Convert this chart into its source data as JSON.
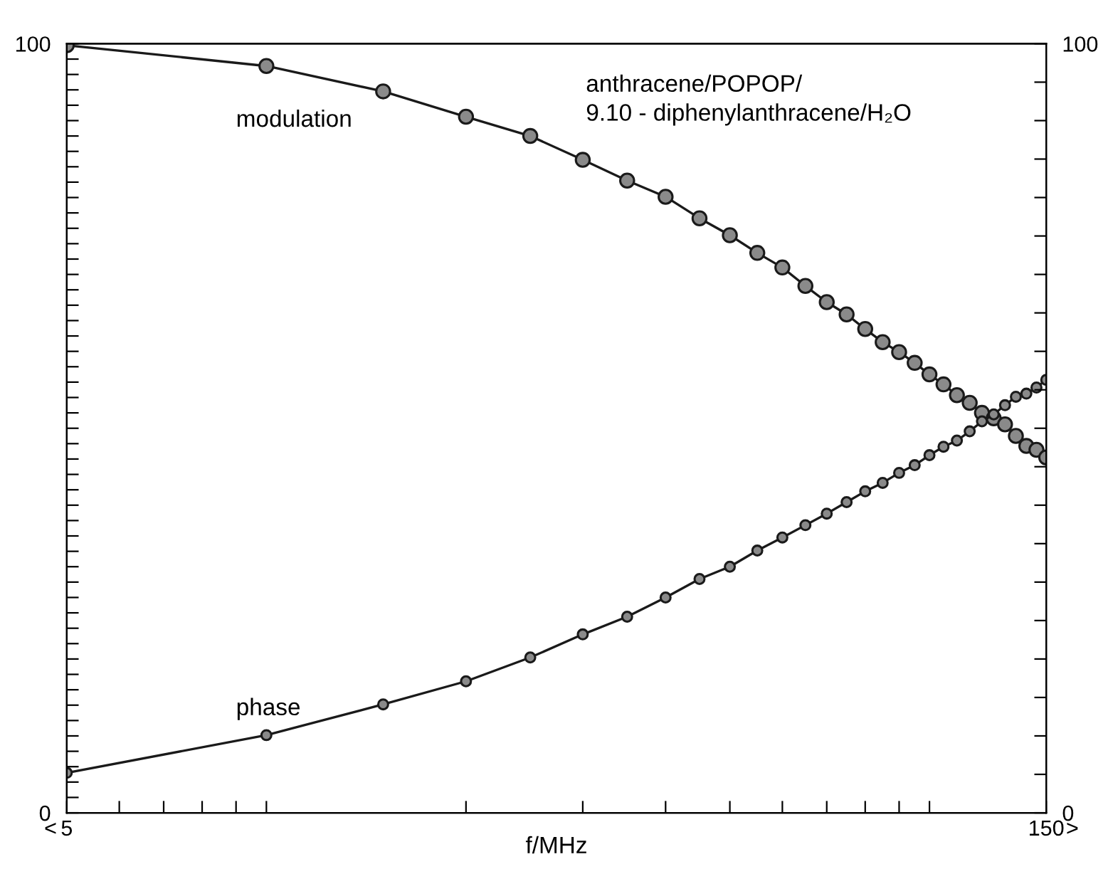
{
  "chart_data": {
    "type": "line",
    "xlabel": "f/MHz",
    "x": [
      5,
      10,
      15,
      20,
      25,
      30,
      35,
      40,
      45,
      50,
      55,
      60,
      65,
      70,
      75,
      80,
      85,
      90,
      95,
      100,
      105,
      110,
      115,
      120,
      125,
      130,
      135,
      140,
      145,
      150
    ],
    "series": [
      {
        "name": "modulation",
        "color": "#1a1a1a",
        "values": [
          99.8,
          97.1,
          93.8,
          90.5,
          88.0,
          84.9,
          82.2,
          80.1,
          77.3,
          75.1,
          72.8,
          70.9,
          68.5,
          66.4,
          64.8,
          62.9,
          61.2,
          59.9,
          58.5,
          57.0,
          55.7,
          54.3,
          53.3,
          52.0,
          51.3,
          50.5,
          49.0,
          47.7,
          47.2,
          46.2
        ]
      },
      {
        "name": "phase",
        "color": "#1a1a1a",
        "values": [
          5.2,
          10.1,
          14.1,
          17.1,
          20.2,
          23.2,
          25.5,
          28.0,
          30.4,
          32.0,
          34.1,
          35.8,
          37.4,
          38.9,
          40.4,
          41.8,
          42.9,
          44.2,
          45.2,
          46.5,
          47.6,
          48.4,
          49.6,
          50.9,
          51.8,
          53.0,
          54.1,
          54.5,
          55.3,
          56.3
        ]
      }
    ],
    "annotations": [
      "anthracene/POPOP/\n9.10 - diphenylanthracene/H₂O",
      "<",
      ">"
    ],
    "log": "x",
    "xlim": [
      5,
      150
    ],
    "xticks": [
      5,
      {
        "value": 6,
        "label": null
      },
      {
        "value": 7,
        "label": null
      },
      {
        "value": 8,
        "label": null
      },
      {
        "value": 9,
        "label": null
      },
      {
        "value": 10,
        "label": null
      },
      {
        "value": 20,
        "label": null
      },
      {
        "value": 30,
        "label": null
      },
      {
        "value": 40,
        "label": null
      },
      {
        "value": 50,
        "label": null
      },
      {
        "value": 60,
        "label": null
      },
      {
        "value": 70,
        "label": null
      },
      {
        "value": 80,
        "label": null
      },
      {
        "value": 90,
        "label": null
      },
      {
        "value": 100,
        "label": null
      },
      150
    ],
    "ylim": [
      0,
      100
    ],
    "yticks": [
      0,
      {
        "value": 2,
        "label": null
      },
      {
        "value": 4,
        "label": null
      },
      {
        "value": 6,
        "label": null
      },
      {
        "value": 8,
        "label": null
      },
      {
        "value": 10,
        "label": null
      },
      {
        "value": 12,
        "label": null
      },
      {
        "value": 14,
        "label": null
      },
      {
        "value": 16,
        "label": null
      },
      {
        "value": 18,
        "label": null
      },
      {
        "value": 20,
        "label": null
      },
      {
        "value": 22,
        "label": null
      },
      {
        "value": 24,
        "label": null
      },
      {
        "value": 26,
        "label": null
      },
      {
        "value": 28,
        "label": null
      },
      {
        "value": 30,
        "label": null
      },
      {
        "value": 32,
        "label": null
      },
      {
        "value": 34,
        "label": null
      },
      {
        "value": 36,
        "label": null
      },
      {
        "value": 38,
        "label": null
      },
      {
        "value": 40,
        "label": null
      },
      {
        "value": 42,
        "label": null
      },
      {
        "value": 44,
        "label": null
      },
      {
        "value": 46,
        "label": null
      },
      {
        "value": 48,
        "label": null
      },
      {
        "value": 50,
        "label": null
      },
      {
        "value": 52,
        "label": null
      },
      {
        "value": 54,
        "label": null
      },
      {
        "value": 56,
        "label": null
      },
      {
        "value": 58,
        "label": null
      },
      {
        "value": 60,
        "label": null
      },
      {
        "value": 62,
        "label": null
      },
      {
        "value": 64,
        "label": null
      },
      {
        "value": 66,
        "label": null
      },
      {
        "value": 68,
        "label": null
      },
      {
        "value": 70,
        "label": null
      },
      {
        "value": 72,
        "label": null
      },
      {
        "value": 74,
        "label": null
      },
      {
        "value": 76,
        "label": null
      },
      {
        "value": 78,
        "label": null
      },
      {
        "value": 80,
        "label": null
      },
      {
        "value": 82,
        "label": null
      },
      {
        "value": 84,
        "label": null
      },
      {
        "value": 86,
        "label": null
      },
      {
        "value": 88,
        "label": null
      },
      {
        "value": 90,
        "label": null
      },
      {
        "value": 92,
        "label": null
      },
      {
        "value": 94,
        "label": null
      },
      {
        "value": 96,
        "label": null
      },
      {
        "value": 98,
        "label": null
      },
      100
    ],
    "y2lim": [
      0,
      100
    ],
    "y2ticks": [
      0,
      {
        "value": 5,
        "label": null
      },
      {
        "value": 10,
        "label": null
      },
      {
        "value": 15,
        "label": null
      },
      {
        "value": 20,
        "label": null
      },
      {
        "value": 25,
        "label": null
      },
      {
        "value": 30,
        "label": null
      },
      {
        "value": 35,
        "label": null
      },
      {
        "value": 40,
        "label": null
      },
      {
        "value": 45,
        "label": null
      },
      {
        "value": 50,
        "label": null
      },
      {
        "value": 55,
        "label": null
      },
      {
        "value": 60,
        "label": null
      },
      {
        "value": 65,
        "label": null
      },
      {
        "value": 70,
        "label": null
      },
      {
        "value": 75,
        "label": null
      },
      {
        "value": 80,
        "label": null
      },
      {
        "value": 85,
        "label": null
      },
      {
        "value": 90,
        "label": null
      },
      {
        "value": 95,
        "label": null
      },
      100
    ],
    "marker": "circle",
    "line_style": "solid",
    "grid": false,
    "legend": false
  }
}
